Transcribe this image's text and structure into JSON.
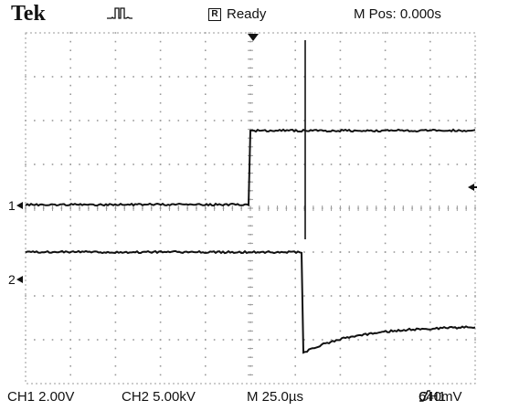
{
  "header": {
    "brand": "Tek",
    "acquisition_icon": "single-pulse-icon",
    "status_icon": "stopped-R-icon",
    "status_icon_glyph": "R",
    "status": "Ready",
    "position": "M Pos: 0.000s"
  },
  "screen": {
    "divisions_x": 10,
    "divisions_y": 8,
    "trigger_position_marker": "down-arrow-icon",
    "trigger_level_marker": "left-arrow-icon",
    "channels": [
      {
        "label": "1",
        "marker": "right-arrow-icon"
      },
      {
        "label": "2",
        "marker": "right-arrow-icon"
      }
    ]
  },
  "footer": {
    "ch1": "CH1  2.00V",
    "ch2": "CH2  5.00kV",
    "timebase": "M 25.0µs",
    "trigger_source": "CH1",
    "trigger_slope_icon": "rising-slope-icon",
    "trigger_level": "640mV"
  },
  "colors": {
    "trace": "#111111",
    "grid": "#9a9a9a",
    "background": "#ffffff"
  }
}
